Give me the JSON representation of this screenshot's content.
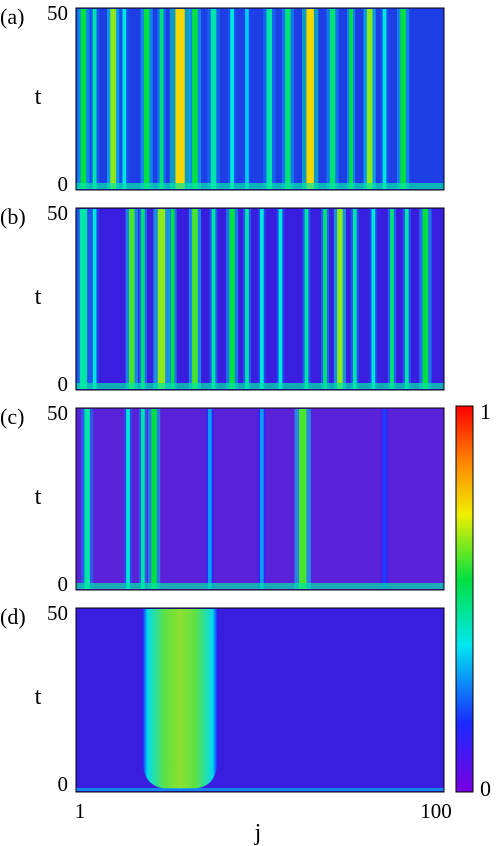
{
  "chart_data": {
    "type": "heatmap",
    "panels": [
      {
        "label": "(a)",
        "ylabel": "t",
        "yticks": [
          "0",
          "50"
        ],
        "ylim": [
          0,
          50
        ],
        "xlim": [
          1,
          100
        ],
        "background": "#1f3fe6",
        "stripes": [
          {
            "j": 3,
            "w": 1.5,
            "v": 0.55
          },
          {
            "j": 6,
            "w": 1,
            "v": 0.45
          },
          {
            "j": 11,
            "w": 1.5,
            "v": 0.65
          },
          {
            "j": 14,
            "w": 1,
            "v": 0.4
          },
          {
            "j": 20,
            "w": 1.5,
            "v": 0.55
          },
          {
            "j": 24,
            "w": 1,
            "v": 0.5
          },
          {
            "j": 29,
            "w": 2.5,
            "v": 0.75
          },
          {
            "j": 33,
            "w": 1.5,
            "v": 0.55
          },
          {
            "j": 38,
            "w": 1.5,
            "v": 0.45
          },
          {
            "j": 43,
            "w": 1,
            "v": 0.4
          },
          {
            "j": 47,
            "w": 1,
            "v": 0.35
          },
          {
            "j": 53,
            "w": 1.5,
            "v": 0.45
          },
          {
            "j": 58,
            "w": 1.5,
            "v": 0.5
          },
          {
            "j": 64,
            "w": 2,
            "v": 0.75
          },
          {
            "j": 70,
            "w": 1.5,
            "v": 0.5
          },
          {
            "j": 75,
            "w": 1,
            "v": 0.55
          },
          {
            "j": 80,
            "w": 1.5,
            "v": 0.65
          },
          {
            "j": 84,
            "w": 1,
            "v": 0.4
          },
          {
            "j": 89,
            "w": 1.5,
            "v": 0.55
          }
        ]
      },
      {
        "label": "(b)",
        "ylabel": "t",
        "yticks": [
          "0",
          "50"
        ],
        "ylim": [
          0,
          50
        ],
        "xlim": [
          1,
          100
        ],
        "background": "#3a1ee0",
        "stripes": [
          {
            "j": 3,
            "w": 2,
            "v": 0.45
          },
          {
            "j": 6,
            "w": 1,
            "v": 0.4
          },
          {
            "j": 16,
            "w": 1.5,
            "v": 0.6
          },
          {
            "j": 19,
            "w": 1,
            "v": 0.5
          },
          {
            "j": 24,
            "w": 2,
            "v": 0.65
          },
          {
            "j": 27,
            "w": 1,
            "v": 0.55
          },
          {
            "j": 33,
            "w": 1.5,
            "v": 0.6
          },
          {
            "j": 38,
            "w": 1,
            "v": 0.45
          },
          {
            "j": 43,
            "w": 1.5,
            "v": 0.55
          },
          {
            "j": 47,
            "w": 1,
            "v": 0.45
          },
          {
            "j": 51,
            "w": 1,
            "v": 0.4
          },
          {
            "j": 56,
            "w": 1,
            "v": 0.4
          },
          {
            "j": 63,
            "w": 1,
            "v": 0.45
          },
          {
            "j": 68,
            "w": 1,
            "v": 0.5
          },
          {
            "j": 72,
            "w": 1.5,
            "v": 0.65
          },
          {
            "j": 76,
            "w": 1,
            "v": 0.45
          },
          {
            "j": 81,
            "w": 1,
            "v": 0.4
          },
          {
            "j": 86,
            "w": 1,
            "v": 0.5
          },
          {
            "j": 90,
            "w": 1,
            "v": 0.45
          },
          {
            "j": 95,
            "w": 1.5,
            "v": 0.55
          }
        ]
      },
      {
        "label": "(c)",
        "ylabel": "t",
        "yticks": [
          "0",
          "50"
        ],
        "ylim": [
          0,
          50
        ],
        "xlim": [
          1,
          100
        ],
        "background": "#5a22d8",
        "stripes": [
          {
            "j": 4,
            "w": 1.5,
            "v": 0.45
          },
          {
            "j": 15,
            "w": 1,
            "v": 0.4
          },
          {
            "j": 19,
            "w": 1,
            "v": 0.45
          },
          {
            "j": 22,
            "w": 1.5,
            "v": 0.55
          },
          {
            "j": 37,
            "w": 1,
            "v": 0.3
          },
          {
            "j": 51,
            "w": 1,
            "v": 0.3
          },
          {
            "j": 62,
            "w": 2,
            "v": 0.6
          },
          {
            "j": 84,
            "w": 1,
            "v": 0.2
          }
        ]
      },
      {
        "label": "(d)",
        "ylabel": "t",
        "yticks": [
          "0",
          "50"
        ],
        "ylim": [
          0,
          50
        ],
        "xlim": [
          1,
          100
        ],
        "xlabel": "j",
        "xticks": [
          "1",
          "100"
        ],
        "background": "#3a1ee0",
        "blob": {
          "j_start": 19,
          "j_end": 39,
          "v": 0.6
        }
      }
    ],
    "colorbar": {
      "min": "0",
      "max": "1",
      "vmin": 0,
      "vmax": 1
    }
  }
}
